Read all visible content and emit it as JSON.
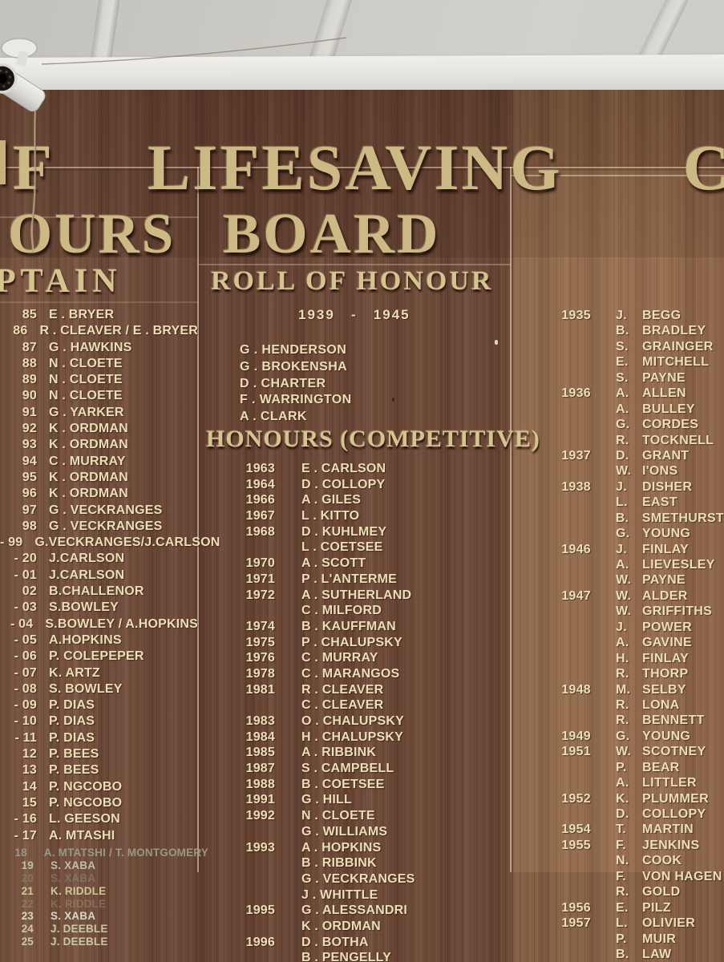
{
  "title": {
    "line1_left": "F",
    "line1_mid": "LIFESAVING",
    "line1_right": "C",
    "line2_left": "OURS",
    "line2_right": "BOARD"
  },
  "colors": {
    "gold_lettering": "#cdb983",
    "cream_lettering": "#eadfb6",
    "wood_left": "#704c3b",
    "wood_right": "#8d664a",
    "ceiling": "#cccac5",
    "trim": "#e6e4df"
  },
  "captain_column": {
    "header": "PTAIN",
    "rows": [
      {
        "year": "85",
        "name": "E . BRYER"
      },
      {
        "year": "86",
        "name": "R . CLEAVER / E . BRYER"
      },
      {
        "year": "87",
        "name": "G . HAWKINS"
      },
      {
        "year": "88",
        "name": "N . CLOETE"
      },
      {
        "year": "89",
        "name": "N . CLOETE"
      },
      {
        "year": "90",
        "name": "N . CLOETE"
      },
      {
        "year": "91",
        "name": "G . YARKER"
      },
      {
        "year": "92",
        "name": "K . ORDMAN"
      },
      {
        "year": "93",
        "name": "K . ORDMAN"
      },
      {
        "year": "94",
        "name": "C . MURRAY"
      },
      {
        "year": "95",
        "name": "K . ORDMAN"
      },
      {
        "year": "96",
        "name": "K . ORDMAN"
      },
      {
        "year": "97",
        "name": "G . VECKRANGES"
      },
      {
        "year": "98",
        "name": "G . VECKRANGES"
      },
      {
        "year": "- 99",
        "name": "G.VECKRANGES/J.CARLSON"
      },
      {
        "year": "- 20",
        "name": "J.CARLSON"
      },
      {
        "year": "- 01",
        "name": "J.CARLSON"
      },
      {
        "year": "02",
        "name": "B.CHALLENOR"
      },
      {
        "year": "- 03",
        "name": "S.BOWLEY"
      },
      {
        "year": "- 04",
        "name": "S.BOWLEY / A.HOPKINS"
      },
      {
        "year": "- 05",
        "name": "A.HOPKINS"
      },
      {
        "year": "- 06",
        "name": "P. COLEPEPER"
      },
      {
        "year": "- 07",
        "name": "K. ARTZ"
      },
      {
        "year": "- 08",
        "name": "S. BOWLEY"
      },
      {
        "year": "- 09",
        "name": "P. DIAS"
      },
      {
        "year": "- 10",
        "name": "P. DIAS"
      },
      {
        "year": "- 11",
        "name": "P. DIAS"
      },
      {
        "year": "12",
        "name": "P. BEES"
      },
      {
        "year": "13",
        "name": "P. BEES"
      },
      {
        "year": "14",
        "name": "P. NGCOBO"
      },
      {
        "year": "15",
        "name": "P. NGCOBO"
      },
      {
        "year": "- 16",
        "name": "L. GEESON"
      },
      {
        "year": "- 17",
        "name": "A. MTASHI"
      },
      {
        "year": "18",
        "name": "A. MTATSHI / T. MONTGOMERY",
        "fade": "a"
      },
      {
        "year": "19",
        "name": "S. XABA",
        "fade": "b"
      },
      {
        "year": "20",
        "name": "S. XABA",
        "fade": "c"
      },
      {
        "year": "21",
        "name": "K. RIDDLE",
        "fade": "d"
      },
      {
        "year": "22",
        "name": "K. RIDDLE",
        "fade": "e"
      },
      {
        "year": "23",
        "name": "S. XABA",
        "fade": "f"
      },
      {
        "year": "24",
        "name": "J. DEEBLE",
        "fade": "g"
      },
      {
        "year": "25",
        "name": "J. DEEBLE",
        "fade": "g"
      }
    ]
  },
  "honour_column": {
    "header": "ROLL OF HONOUR",
    "period": "1939   -   1945",
    "war_names": [
      "G . HENDERSON",
      "G . BROKENSHA",
      "D . CHARTER",
      "F . WARRINGTON",
      "A . CLARK"
    ],
    "competitive_header": "HONOURS (COMPETITIVE)",
    "rows": [
      {
        "year": "1963",
        "name": "E . CARLSON"
      },
      {
        "year": "1964",
        "name": "D . COLLOPY"
      },
      {
        "year": "1966",
        "name": "A . GILES"
      },
      {
        "year": "1967",
        "name": "L . KITTO"
      },
      {
        "year": "1968",
        "name": "D . KUHLMEY"
      },
      {
        "year": "",
        "name": "L . COETSEE"
      },
      {
        "year": "1970",
        "name": "A . SCOTT"
      },
      {
        "year": "1971",
        "name": "P . L'ANTERME"
      },
      {
        "year": "1972",
        "name": "A . SUTHERLAND"
      },
      {
        "year": "",
        "name": "C . MILFORD"
      },
      {
        "year": "1974",
        "name": "B . KAUFFMAN"
      },
      {
        "year": "1975",
        "name": "P . CHALUPSKY"
      },
      {
        "year": "1976",
        "name": "C . MURRAY"
      },
      {
        "year": "1978",
        "name": "C . MARANGOS"
      },
      {
        "year": "1981",
        "name": "R . CLEAVER"
      },
      {
        "year": "",
        "name": "C . CLEAVER"
      },
      {
        "year": "1983",
        "name": "O . CHALUPSKY"
      },
      {
        "year": "1984",
        "name": "H . CHALUPSKY"
      },
      {
        "year": "1985",
        "name": "A . RIBBINK"
      },
      {
        "year": "1987",
        "name": "S . CAMPBELL"
      },
      {
        "year": "1988",
        "name": "B . COETSEE"
      },
      {
        "year": "1991",
        "name": "G . HILL"
      },
      {
        "year": "1992",
        "name": "N . CLOETE"
      },
      {
        "year": "",
        "name": "G . WILLIAMS"
      },
      {
        "year": "1993",
        "name": "A . HOPKINS"
      },
      {
        "year": "",
        "name": "B . RIBBINK"
      },
      {
        "year": "",
        "name": "G . VECKRANGES"
      },
      {
        "year": "",
        "name": "J . WHITTLE"
      },
      {
        "year": "1995",
        "name": "G . ALESSANDRI"
      },
      {
        "year": "",
        "name": "K . ORDMAN"
      },
      {
        "year": "1996",
        "name": "D . BOTHA"
      },
      {
        "year": "",
        "name": "B . PENGELLY"
      }
    ]
  },
  "years_column": {
    "rows": [
      {
        "year": "1935",
        "initial": "J.",
        "surname": "BEGG"
      },
      {
        "year": "",
        "initial": "B.",
        "surname": "BRADLEY"
      },
      {
        "year": "",
        "initial": "S.",
        "surname": "GRAINGER"
      },
      {
        "year": "",
        "initial": "E.",
        "surname": "MITCHELL"
      },
      {
        "year": "",
        "initial": "S.",
        "surname": "PAYNE"
      },
      {
        "year": "1936",
        "initial": "A.",
        "surname": "ALLEN"
      },
      {
        "year": "",
        "initial": "A.",
        "surname": "BULLEY"
      },
      {
        "year": "",
        "initial": "G.",
        "surname": "CORDES"
      },
      {
        "year": "",
        "initial": "R.",
        "surname": "TOCKNELL"
      },
      {
        "year": "1937",
        "initial": "D.",
        "surname": "GRANT"
      },
      {
        "year": "",
        "initial": "W.",
        "surname": "I'ONS"
      },
      {
        "year": "1938",
        "initial": "J.",
        "surname": "DISHER"
      },
      {
        "year": "",
        "initial": "L.",
        "surname": "EAST"
      },
      {
        "year": "",
        "initial": "B.",
        "surname": "SMETHURST"
      },
      {
        "year": "",
        "initial": "G.",
        "surname": "YOUNG"
      },
      {
        "year": "1946",
        "initial": "J.",
        "surname": "FINLAY"
      },
      {
        "year": "",
        "initial": "A.",
        "surname": "LIEVESLEY"
      },
      {
        "year": "",
        "initial": "W.",
        "surname": "PAYNE"
      },
      {
        "year": "1947",
        "initial": "W.",
        "surname": "ALDER"
      },
      {
        "year": "",
        "initial": "W.",
        "surname": "GRIFFITHS"
      },
      {
        "year": "",
        "initial": "J.",
        "surname": "POWER"
      },
      {
        "year": "",
        "initial": "A.",
        "surname": "GAVINE"
      },
      {
        "year": "",
        "initial": "H.",
        "surname": "FINLAY"
      },
      {
        "year": "",
        "initial": "R.",
        "surname": "THORP"
      },
      {
        "year": "1948",
        "initial": "M.",
        "surname": "SELBY"
      },
      {
        "year": "",
        "initial": "R.",
        "surname": "LONA"
      },
      {
        "year": "",
        "initial": "R.",
        "surname": "BENNETT"
      },
      {
        "year": "1949",
        "initial": "G.",
        "surname": "YOUNG"
      },
      {
        "year": "1951",
        "initial": "W.",
        "surname": "SCOTNEY"
      },
      {
        "year": "",
        "initial": "P.",
        "surname": "BEAR"
      },
      {
        "year": "",
        "initial": "A.",
        "surname": "LITTLER"
      },
      {
        "year": "1952",
        "initial": "K.",
        "surname": "PLUMMER"
      },
      {
        "year": "",
        "initial": "D.",
        "surname": "COLLOPY"
      },
      {
        "year": "1954",
        "initial": "T.",
        "surname": "MARTIN"
      },
      {
        "year": "1955",
        "initial": "F.",
        "surname": "JENKINS"
      },
      {
        "year": "",
        "initial": "N.",
        "surname": "COOK"
      },
      {
        "year": "",
        "initial": "F.",
        "surname": "VON HAGEN"
      },
      {
        "year": "",
        "initial": "R.",
        "surname": "GOLD"
      },
      {
        "year": "1956",
        "initial": "E.",
        "surname": "PILZ"
      },
      {
        "year": "1957",
        "initial": "L.",
        "surname": "OLIVIER"
      },
      {
        "year": "",
        "initial": "P.",
        "surname": "MUIR"
      },
      {
        "year": "",
        "initial": "B.",
        "surname": "LAW"
      }
    ]
  }
}
